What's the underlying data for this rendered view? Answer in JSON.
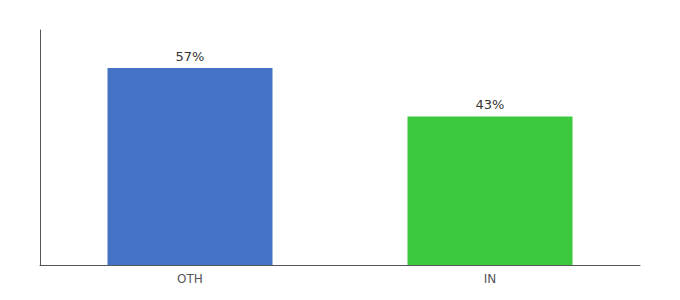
{
  "chart_data": {
    "type": "bar",
    "categories": [
      "OTH",
      "IN"
    ],
    "values": [
      57,
      43
    ],
    "value_labels": [
      "57%",
      "43%"
    ],
    "colors": [
      "#4472c4",
      "#3dc93d"
    ],
    "ylim": [
      0,
      68
    ],
    "yticks": [],
    "grid": false,
    "data_labels": true,
    "tick_labels": "x"
  }
}
